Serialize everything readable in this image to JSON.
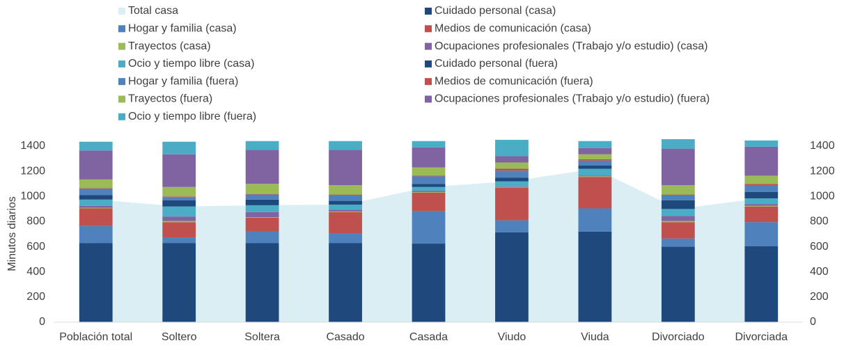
{
  "chart_data": {
    "type": "bar",
    "stacked": true,
    "y_label": "Minutos diarios",
    "categories": [
      "Población total",
      "Soltero",
      "Soltera",
      "Casado",
      "Casada",
      "Viudo",
      "Viuda",
      "Divorciado",
      "Divorciada"
    ],
    "ylim": [
      0,
      1400
    ],
    "yticks": [
      0,
      200,
      400,
      600,
      800,
      1000,
      1200,
      1400
    ],
    "y2lim": [
      0,
      1400
    ],
    "y2ticks": [
      0,
      200,
      400,
      600,
      800,
      1000,
      1200,
      1400
    ],
    "grid": false,
    "series": [
      {
        "name": "Total casa",
        "type": "area",
        "color": "#daeef3",
        "values": [
          975,
          920,
          930,
          935,
          1075,
          1120,
          1220,
          900,
          985
        ]
      },
      {
        "name": "Cuidado personal (casa)",
        "color": "#1f497d",
        "values": [
          630,
          630,
          630,
          630,
          625,
          715,
          720,
          600,
          605
        ]
      },
      {
        "name": "Hogar y familia (casa)",
        "color": "#4f81bd",
        "values": [
          135,
          45,
          95,
          75,
          260,
          95,
          185,
          65,
          190
        ]
      },
      {
        "name": "Medios de comunicación (casa)",
        "color": "#c0504d",
        "values": [
          140,
          120,
          105,
          170,
          145,
          260,
          250,
          130,
          125
        ]
      },
      {
        "name": "Trayectos (casa)",
        "color": "#9bbb59",
        "values": [
          5,
          10,
          5,
          5,
          5,
          5,
          5,
          10,
          5
        ]
      },
      {
        "name": "Ocupaciones profesionales (Trabajo y/o estudio)  (casa)",
        "color": "#8064a2",
        "values": [
          15,
          35,
          40,
          15,
          10,
          5,
          5,
          40,
          15
        ]
      },
      {
        "name": "Ocio y tiempo libre  (casa)",
        "color": "#4bacc6",
        "values": [
          50,
          80,
          55,
          40,
          30,
          40,
          55,
          55,
          45
        ]
      },
      {
        "name": "Cuidado personal (fuera)",
        "color": "#1f497d",
        "values": [
          35,
          50,
          45,
          30,
          25,
          30,
          25,
          70,
          50
        ]
      },
      {
        "name": "Hogar y familia (fuera)",
        "color": "#4f81bd",
        "values": [
          50,
          25,
          40,
          45,
          60,
          55,
          40,
          40,
          55
        ]
      },
      {
        "name": "Medios de comunicación (fuera)",
        "color": "#c0504d",
        "values": [
          5,
          5,
          5,
          5,
          5,
          15,
          10,
          5,
          10
        ]
      },
      {
        "name": "Trayectos (fuera)",
        "color": "#9bbb59",
        "values": [
          70,
          75,
          80,
          75,
          65,
          50,
          40,
          75,
          65
        ]
      },
      {
        "name": "Ocupaciones profesionales (Trabajo y/o estudio) (fuera)",
        "color": "#8064a2",
        "values": [
          230,
          260,
          270,
          280,
          160,
          50,
          50,
          290,
          230
        ]
      },
      {
        "name": "Ocio y tiempo libre (fuera)",
        "color": "#4bacc6",
        "values": [
          70,
          100,
          70,
          70,
          50,
          130,
          55,
          75,
          50
        ]
      }
    ]
  }
}
